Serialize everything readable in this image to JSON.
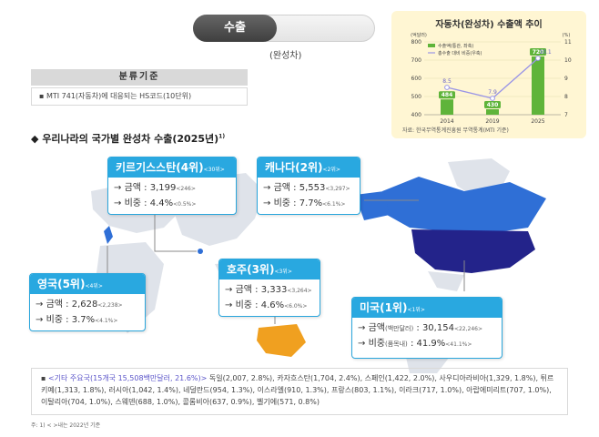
{
  "header": {
    "tag_label": "수출",
    "subtitle": "(완성차)"
  },
  "criteria": {
    "title": "분류기준",
    "item": "MTI 741(자동차)에 대응되는 HS코드(10단위)"
  },
  "section_title": "우리나라의 국가별 완성차 수출(2025년)",
  "section_note_mark": "1)",
  "trend_panel": {
    "title": "자동차(완성차) 수출액 추이",
    "source": "자료: 한국무역통계진흥원 무역통계(MTI 기준)"
  },
  "chart_data": {
    "type": "bar",
    "categories": [
      "2014",
      "2019",
      "2025"
    ],
    "series": [
      {
        "name": "수출액(통관, 좌축)",
        "type": "bar",
        "values": [
          484,
          430,
          720
        ]
      },
      {
        "name": "총수출 대비 비중(우축)",
        "type": "line",
        "values": [
          8.5,
          7.9,
          10.1
        ]
      }
    ],
    "ylabel": "(억달러)",
    "y2label": "(%)",
    "ylim": [
      400,
      800
    ],
    "y_ticks": [
      400,
      500,
      600,
      700,
      800
    ],
    "y2lim": [
      7,
      11
    ],
    "y2_ticks": [
      7,
      8,
      9,
      10,
      11
    ],
    "bar_labels": [
      "484",
      "430",
      "720"
    ],
    "line_labels": [
      "8.5",
      "7.9",
      "10.1"
    ],
    "legend_position": "top-left",
    "colors": {
      "bar": "#5fb43a",
      "line": "#9a95e6"
    }
  },
  "cards": {
    "kyrgyzstan": {
      "title": "키르기스스탄(4위)",
      "prev": "<30위>",
      "amount_label": "금액 : ",
      "amount": "3,199",
      "amount_prev": "<246>",
      "share_label": "비중 : ",
      "share": "4.4%",
      "share_prev": "<0.5%>"
    },
    "canada": {
      "title": "캐나다(2위)",
      "prev": "<2위>",
      "amount_label": "금액 : ",
      "amount": "5,553",
      "amount_prev": "<3,297>",
      "share_label": "비중 : ",
      "share": "7.7%",
      "share_prev": "<6.1%>"
    },
    "uk": {
      "title": "영국(5위)",
      "prev": "<4위>",
      "amount_label": "금액 : ",
      "amount": "2,628",
      "amount_prev": "<2,238>",
      "share_label": "비중 : ",
      "share": "3.7%",
      "share_prev": "<4.1%>"
    },
    "australia": {
      "title": "호주(3위)",
      "prev": "<3위>",
      "amount_label": "금액 : ",
      "amount": "3,333",
      "amount_prev": "<3,264>",
      "share_label": "비중 : ",
      "share": "4.6%",
      "share_prev": "<6.0%>"
    },
    "usa": {
      "title": "미국(1위)",
      "prev": "<1위>",
      "amount_label": "금액",
      "amount_unit": "(백만달러)",
      "amount_sep": " : ",
      "amount": "30,154",
      "amount_prev": "<22,246>",
      "share_label": "비중",
      "share_unit": "(품목내)",
      "share_sep": " : ",
      "share": "41.9%",
      "share_prev": "<41.1%>"
    }
  },
  "others": {
    "head": "<기타 주요국(15개국 15,508백만달러, 21.6%)>",
    "text": " 독일(2,007, 2.8%), 카자흐스탄(1,704, 2.4%), 스페인(1,422, 2.0%), 사우디아라비아(1,329, 1.8%), 튀르키예(1,313, 1.8%), 러시아(1,042, 1.4%), 네덜란드(954, 1.3%), 이스라엘(910, 1.3%), 프랑스(803, 1.1%), 이라크(717, 1.0%), 아랍에미리트(707, 1.0%), 이탈리아(704, 1.0%), 스웨덴(688, 1.0%), 콜롬비아(637, 0.9%), 벨기에(571, 0.8%)"
  },
  "footnote": "주: 1) < >내는 2022년 기준"
}
